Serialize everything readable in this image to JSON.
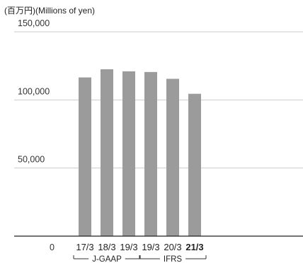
{
  "unit_label": "(百万円)(Millions of yen)",
  "chart_data": {
    "type": "bar",
    "title": "",
    "unit_label": "(百万円)(Millions of yen)",
    "categories": [
      "17/3",
      "18/3",
      "19/3",
      "19/3",
      "20/3",
      "21/3"
    ],
    "highlight_category_index": 5,
    "values": [
      116500,
      122500,
      121000,
      120500,
      115500,
      104500
    ],
    "ylim": [
      0,
      150000
    ],
    "yticks": [
      0,
      50000,
      100000,
      150000
    ],
    "ytick_labels": [
      "0",
      "50,000",
      "100,000",
      "150,000"
    ],
    "grid": true,
    "bar_color": "#9b9b9b",
    "gridline_color": "#cccccc",
    "axis_color": "#222222",
    "groups": [
      {
        "label": "J-GAAP",
        "start_index": 0,
        "end_index": 2
      },
      {
        "label": "IFRS",
        "start_index": 3,
        "end_index": 5
      }
    ]
  }
}
